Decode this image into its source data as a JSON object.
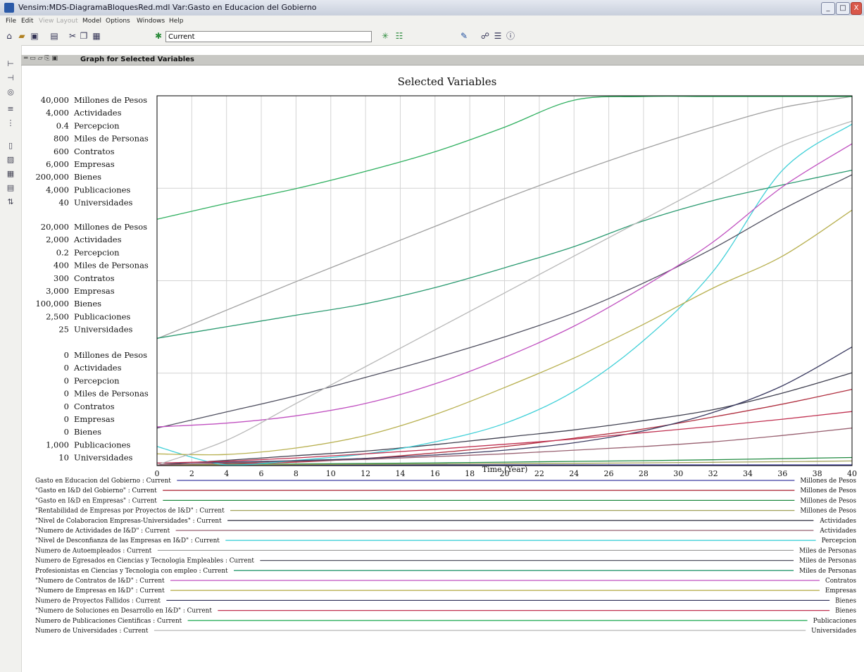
{
  "window": {
    "title": "Vensim:MDS-DiagramaBloquesRed.mdl Var:Gasto en Educacion del Gobierno",
    "min_label": "_",
    "max_label": "□",
    "close_label": "X"
  },
  "menu": [
    {
      "label": "File",
      "enabled": true
    },
    {
      "label": "Edit",
      "enabled": true
    },
    {
      "label": "View",
      "enabled": false
    },
    {
      "label": "Layout",
      "enabled": false
    },
    {
      "label": "Model",
      "enabled": true
    },
    {
      "label": "Options",
      "enabled": true
    },
    {
      "label": "Windows",
      "enabled": true
    },
    {
      "label": "Help",
      "enabled": true
    }
  ],
  "toolbar": {
    "run_name": "Current",
    "icons": [
      "new-file-icon",
      "open-folder-icon",
      "save-icon",
      "print-icon",
      "cut-icon",
      "copy-icon",
      "paste-icon",
      "run-icon",
      "run-config-icon",
      "simulate-icon",
      "sensitivity-icon",
      "tools-icon",
      "network-icon",
      "stats-icon",
      "info-icon"
    ]
  },
  "panel": {
    "title": "Graph for Selected Variables"
  },
  "chart_data": {
    "type": "line",
    "title": "Selected Variables",
    "xlabel": "Time (Year)",
    "x_ticks": [
      0,
      2,
      4,
      6,
      8,
      10,
      12,
      14,
      16,
      18,
      20,
      22,
      24,
      26,
      28,
      30,
      32,
      34,
      36,
      38,
      40
    ],
    "xlim": [
      0,
      40
    ],
    "grid": true,
    "axis_groups": [
      {
        "row": "top",
        "labels": [
          {
            "value": "40,000",
            "unit": "Millones de Pesos"
          },
          {
            "value": "4,000",
            "unit": "Actividades"
          },
          {
            "value": "0.4",
            "unit": "Percepcion"
          },
          {
            "value": "800",
            "unit": "Miles de Personas"
          },
          {
            "value": "600",
            "unit": "Contratos"
          },
          {
            "value": "6,000",
            "unit": "Empresas"
          },
          {
            "value": "200,000",
            "unit": "Bienes"
          },
          {
            "value": "4,000",
            "unit": "Publicaciones"
          },
          {
            "value": "40",
            "unit": "Universidades"
          }
        ]
      },
      {
        "row": "middle",
        "labels": [
          {
            "value": "20,000",
            "unit": "Millones de Pesos"
          },
          {
            "value": "2,000",
            "unit": "Actividades"
          },
          {
            "value": "0.2",
            "unit": "Percepcion"
          },
          {
            "value": "400",
            "unit": "Miles de Personas"
          },
          {
            "value": "300",
            "unit": "Contratos"
          },
          {
            "value": "3,000",
            "unit": "Empresas"
          },
          {
            "value": "100,000",
            "unit": "Bienes"
          },
          {
            "value": "2,500",
            "unit": "Publicaciones"
          },
          {
            "value": "25",
            "unit": "Universidades"
          }
        ]
      },
      {
        "row": "bottom",
        "labels": [
          {
            "value": "0",
            "unit": "Millones de Pesos"
          },
          {
            "value": "0",
            "unit": "Actividades"
          },
          {
            "value": "0",
            "unit": "Percepcion"
          },
          {
            "value": "0",
            "unit": "Miles de Personas"
          },
          {
            "value": "0",
            "unit": "Contratos"
          },
          {
            "value": "0",
            "unit": "Empresas"
          },
          {
            "value": "0",
            "unit": "Bienes"
          },
          {
            "value": "1,000",
            "unit": "Publicaciones"
          },
          {
            "value": "10",
            "unit": "Universidades"
          }
        ]
      }
    ],
    "x": [
      0,
      4,
      8,
      12,
      16,
      20,
      24,
      28,
      32,
      36,
      40
    ],
    "series": [
      {
        "name": "Gasto en Educacion del Gobierno : Current",
        "unit": "Millones de Pesos",
        "color": "#3a3aa0",
        "values": [
          0,
          0,
          0,
          0,
          0,
          0,
          0,
          0,
          0,
          0,
          0
        ]
      },
      {
        "name": "\"Gasto en I&D del Gobierno\" : Current",
        "unit": "Millones de Pesos",
        "color": "#b03040",
        "values": [
          0,
          100,
          300,
          700,
          1300,
          2000,
          2900,
          3900,
          5200,
          6600,
          8200
        ]
      },
      {
        "name": "\"Gasto en I&D en Empresas\" : Current",
        "unit": "Millones de Pesos",
        "color": "#208a40",
        "values": [
          0,
          50,
          100,
          150,
          220,
          300,
          380,
          460,
          560,
          680,
          800
        ]
      },
      {
        "name": "\"Rentabilidad de Empresas por Proyectos de I&D\" : Current",
        "unit": "Millones de Pesos",
        "color": "#a0a058",
        "values": [
          0,
          20,
          40,
          60,
          90,
          130,
          170,
          220,
          280,
          350,
          430
        ]
      },
      {
        "name": "\"Nivel de Colaboracion Empresas-Universidades\" : Current",
        "unit": "Actividades",
        "color": "#404050",
        "values": [
          0,
          50,
          100,
          150,
          220,
          300,
          380,
          480,
          600,
          780,
          1000
        ]
      },
      {
        "name": "\"Numero de Actividades de I&D\" : Current",
        "unit": "Actividades",
        "color": "#986070",
        "values": [
          0,
          20,
          40,
          60,
          90,
          120,
          160,
          200,
          250,
          320,
          400
        ]
      },
      {
        "name": "\"Nivel de Desconfianza de las Empresas en I&D\" : Current",
        "unit": "Percepcion",
        "color": "#40d0d8",
        "values": [
          0.02,
          0.0,
          0.005,
          0.012,
          0.025,
          0.045,
          0.08,
          0.135,
          0.21,
          0.32,
          0.37
        ]
      },
      {
        "name": "Numero de Autoempleados : Current",
        "unit": "Miles de Personas",
        "color": "#a0a0a0",
        "values": [
          274,
          336,
          398,
          458,
          518,
          578,
          634,
          686,
          734,
          776,
          814
        ]
      },
      {
        "name": "Numero de Egresados en Ciencias y Tecnologia Empleables : Current",
        "unit": "Miles de Personas",
        "color": "#505060",
        "values": [
          80,
          115,
          150,
          190,
          232,
          278,
          330,
          395,
          470,
          555,
          630
        ]
      },
      {
        "name": "Profesionistas en Ciencias y Tecnologia con empleo : Current",
        "unit": "Miles de Personas",
        "color": "#2a9a70",
        "values": [
          275,
          300,
          325,
          350,
          385,
          428,
          474,
          530,
          574,
          608,
          640
        ]
      },
      {
        "name": "\"Numero de Contratos de I&D\" : Current",
        "unit": "Contratos",
        "color": "#c050c0",
        "values": [
          62,
          68,
          80,
          100,
          132,
          175,
          226,
          290,
          363,
          453,
          523
        ]
      },
      {
        "name": "\"Numero de Empresas en I&D\" : Current",
        "unit": "Empresas",
        "color": "#b8b050",
        "values": [
          180,
          170,
          275,
          480,
          820,
          1260,
          1740,
          2290,
          2880,
          3400,
          4150
        ]
      },
      {
        "name": "Numero de Proyectos Fallidos : Current",
        "unit": "Bienes",
        "color": "#3a3a60",
        "values": [
          1000,
          1500,
          2300,
          3500,
          5400,
          8000,
          12000,
          18500,
          28500,
          43000,
          64000
        ]
      },
      {
        "name": "\"Numero de Soluciones en Desarrollo en I&D\" : Current",
        "unit": "Bienes",
        "color": "#c03050",
        "values": [
          1000,
          2000,
          3800,
          6000,
          8500,
          11200,
          14000,
          17500,
          21000,
          24800,
          29000
        ]
      },
      {
        "name": "Numero de Publicaciones Cientificas : Current",
        "unit": "Publicaciones",
        "color": "#30b060",
        "values": [
          3000,
          3130,
          3250,
          3390,
          3550,
          3750,
          3970,
          4210,
          4450,
          4710,
          5000
        ]
      },
      {
        "name": "Numero de Universidades : Current",
        "unit": "Universidades",
        "color": "#b8b8b8",
        "values": [
          10,
          12,
          15,
          18,
          21,
          24,
          27,
          30,
          33,
          36,
          38
        ]
      }
    ]
  }
}
